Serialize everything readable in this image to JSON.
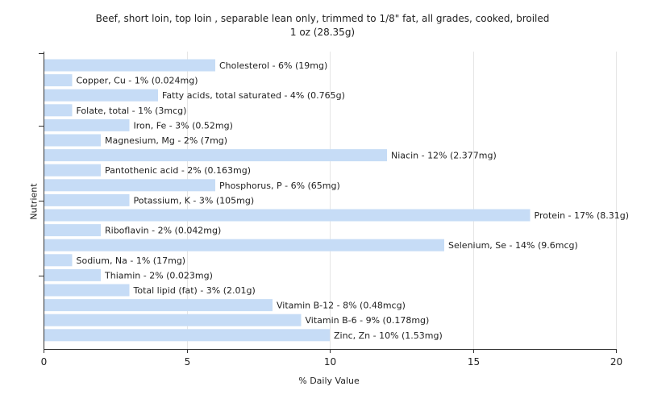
{
  "chart_data": {
    "type": "bar",
    "orientation": "horizontal",
    "title": "Beef, short loin, top loin , separable lean only, trimmed to 1/8\" fat, all grades, cooked, broiled",
    "subtitle": "1 oz (28.35g)",
    "xlabel": "% Daily Value",
    "ylabel": "Nutrient",
    "xlim": [
      0,
      20
    ],
    "xticks": [
      0,
      5,
      10,
      15,
      20
    ],
    "grid": true,
    "bar_color": "#c6dcf6",
    "categories": [
      "Cholesterol",
      "Copper, Cu",
      "Fatty acids, total saturated",
      "Folate, total",
      "Iron, Fe",
      "Magnesium, Mg",
      "Niacin",
      "Pantothenic acid",
      "Phosphorus, P",
      "Potassium, K",
      "Protein",
      "Riboflavin",
      "Selenium, Se",
      "Sodium, Na",
      "Thiamin",
      "Total lipid (fat)",
      "Vitamin B-12",
      "Vitamin B-6",
      "Zinc, Zn"
    ],
    "values": [
      6,
      1,
      4,
      1,
      3,
      2,
      12,
      2,
      6,
      3,
      17,
      2,
      14,
      1,
      2,
      3,
      8,
      9,
      10
    ],
    "labels": [
      "Cholesterol - 6% (19mg)",
      "Copper, Cu - 1% (0.024mg)",
      "Fatty acids, total saturated - 4% (0.765g)",
      "Folate, total - 1% (3mcg)",
      "Iron, Fe - 3% (0.52mg)",
      "Magnesium, Mg - 2% (7mg)",
      "Niacin - 12% (2.377mg)",
      "Pantothenic acid - 2% (0.163mg)",
      "Phosphorus, P - 6% (65mg)",
      "Potassium, K - 3% (105mg)",
      "Protein - 17% (8.31g)",
      "Riboflavin - 2% (0.042mg)",
      "Selenium, Se - 14% (9.6mcg)",
      "Sodium, Na - 1% (17mg)",
      "Thiamin - 2% (0.023mg)",
      "Total lipid (fat) - 3% (2.01g)",
      "Vitamin B-12 - 8% (0.48mcg)",
      "Vitamin B-6 - 9% (0.178mg)",
      "Zinc, Zn - 10% (1.53mg)"
    ]
  }
}
